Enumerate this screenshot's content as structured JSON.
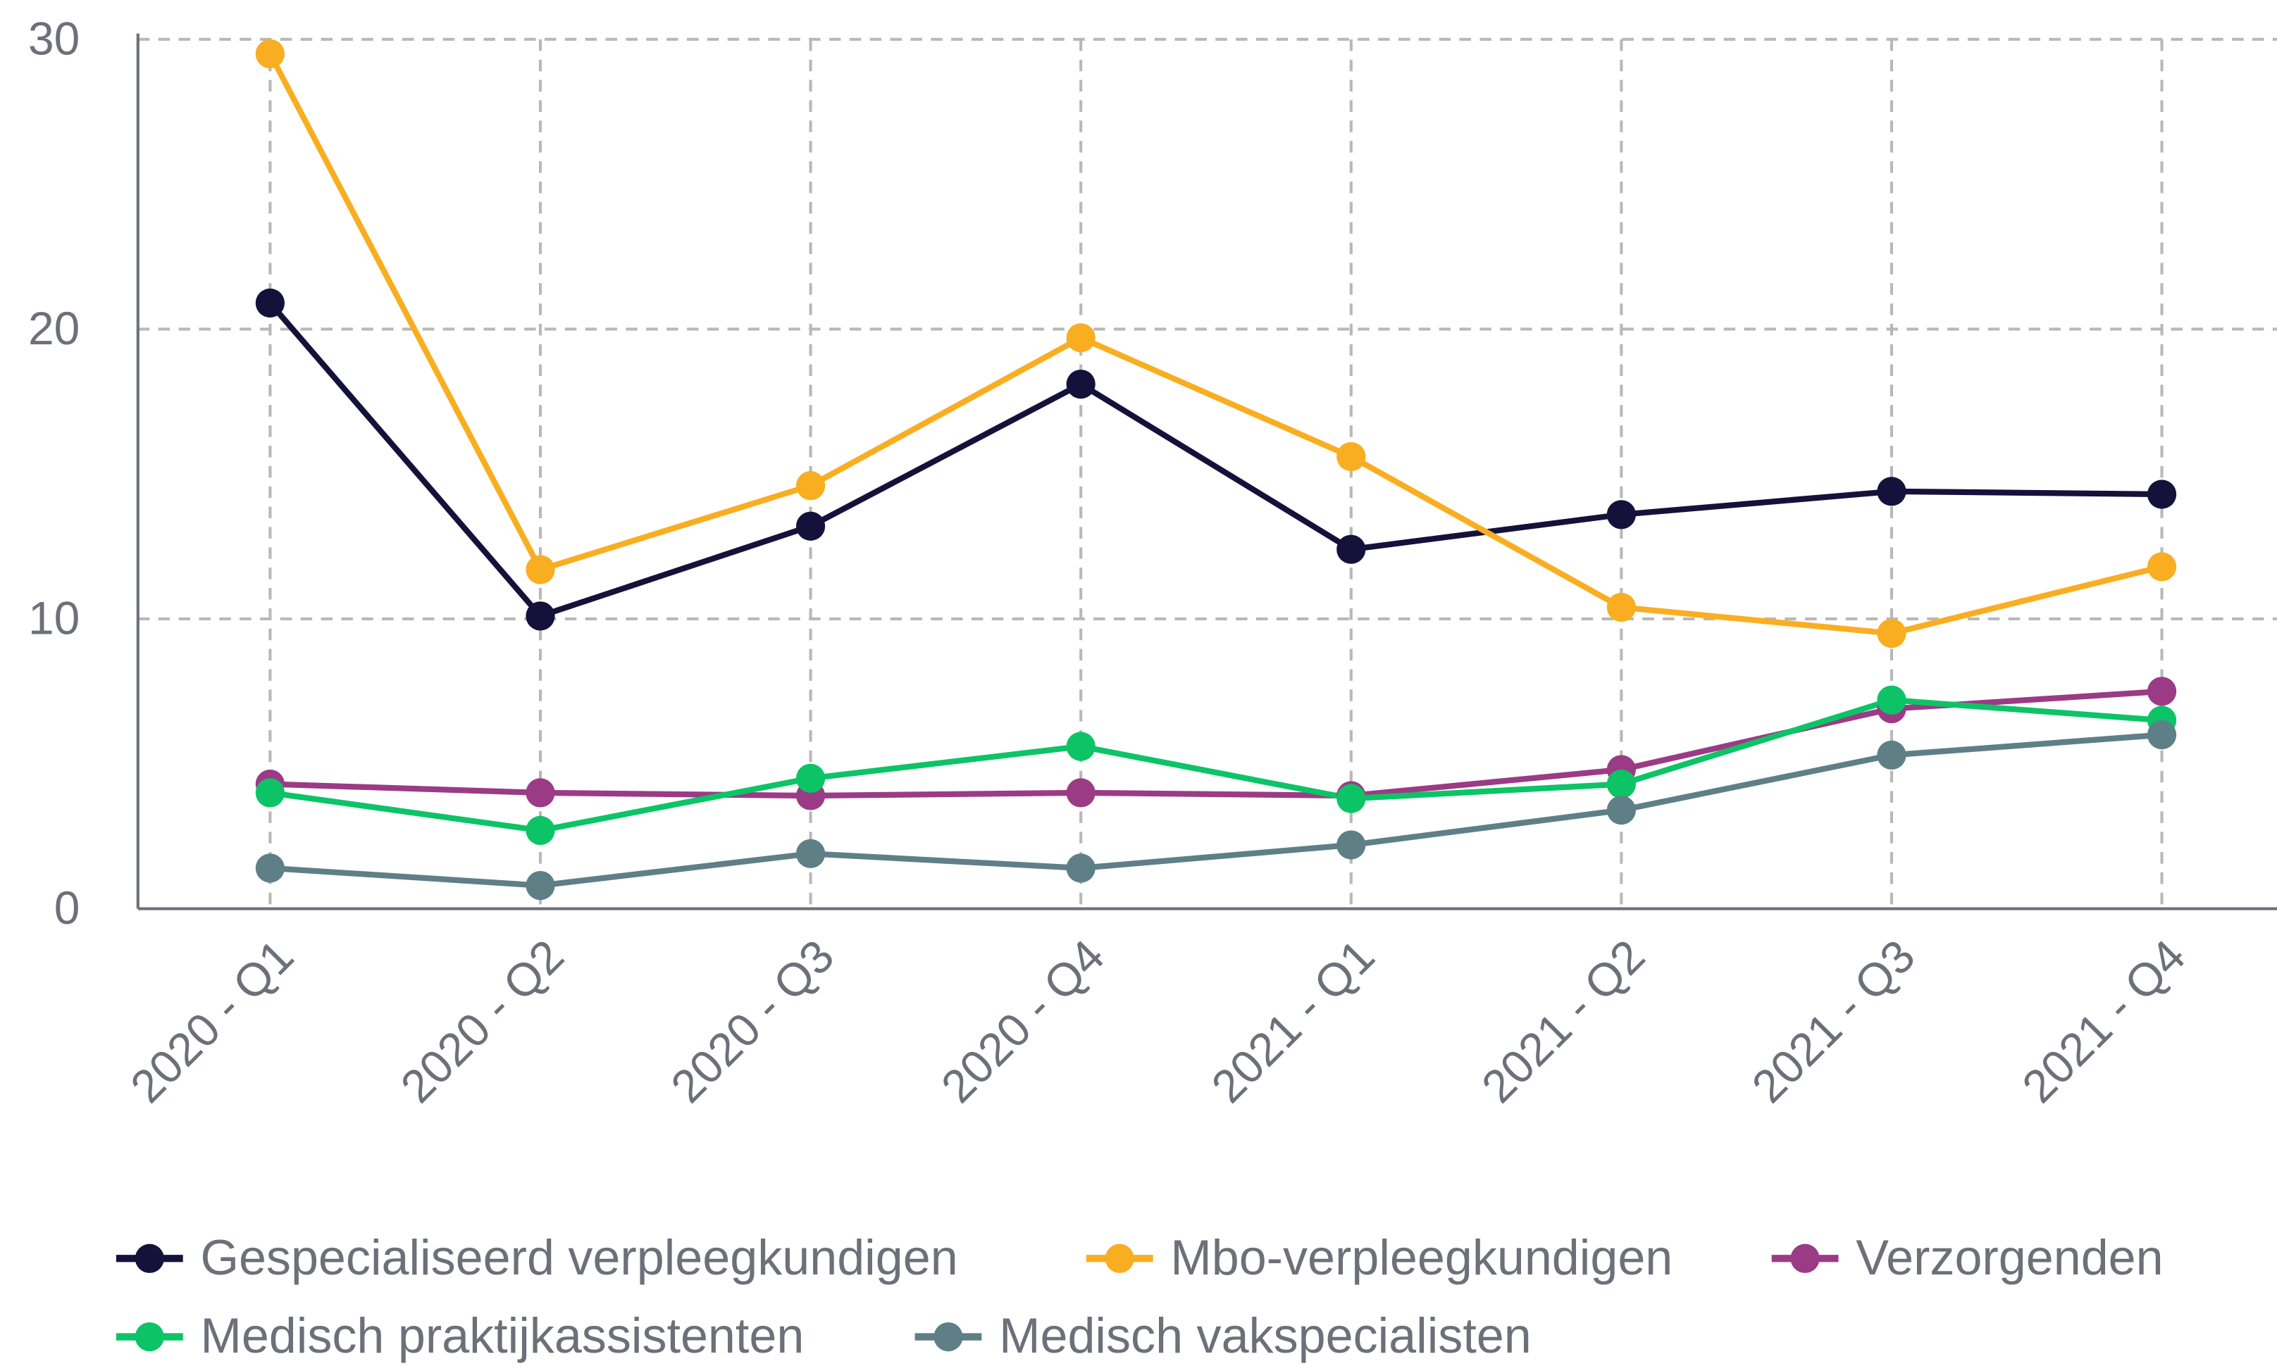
{
  "chart_data": {
    "type": "line",
    "categories": [
      "2020 - Q1",
      "2020 - Q2",
      "2020 - Q3",
      "2020 - Q4",
      "2021 - Q1",
      "2021 - Q2",
      "2021 - Q3",
      "2021 - Q4"
    ],
    "series": [
      {
        "name": "Gespecialiseerd verpleegkundigen",
        "color": "#14123a",
        "values": [
          20.9,
          10.1,
          13.2,
          18.1,
          12.4,
          13.6,
          14.4,
          14.3
        ]
      },
      {
        "name": "Mbo-verpleegkundigen",
        "color": "#f9ae21",
        "values": [
          29.5,
          11.7,
          14.6,
          19.7,
          15.6,
          10.4,
          9.5,
          11.8
        ]
      },
      {
        "name": "Verzorgenden",
        "color": "#9b3b86",
        "values": [
          4.3,
          4.0,
          3.9,
          4.0,
          3.9,
          4.8,
          6.9,
          7.5
        ]
      },
      {
        "name": "Medisch praktijkassistenten",
        "color": "#0cc466",
        "values": [
          4.0,
          2.7,
          4.5,
          5.6,
          3.8,
          4.3,
          7.2,
          6.5
        ]
      },
      {
        "name": "Medisch vakspecialisten",
        "color": "#5f7f86",
        "values": [
          1.4,
          0.8,
          1.9,
          1.4,
          2.2,
          3.4,
          5.3,
          6.0
        ]
      }
    ],
    "ylim": [
      0,
      30
    ],
    "yticks": [
      0,
      10,
      20,
      30
    ],
    "grid": true
  }
}
